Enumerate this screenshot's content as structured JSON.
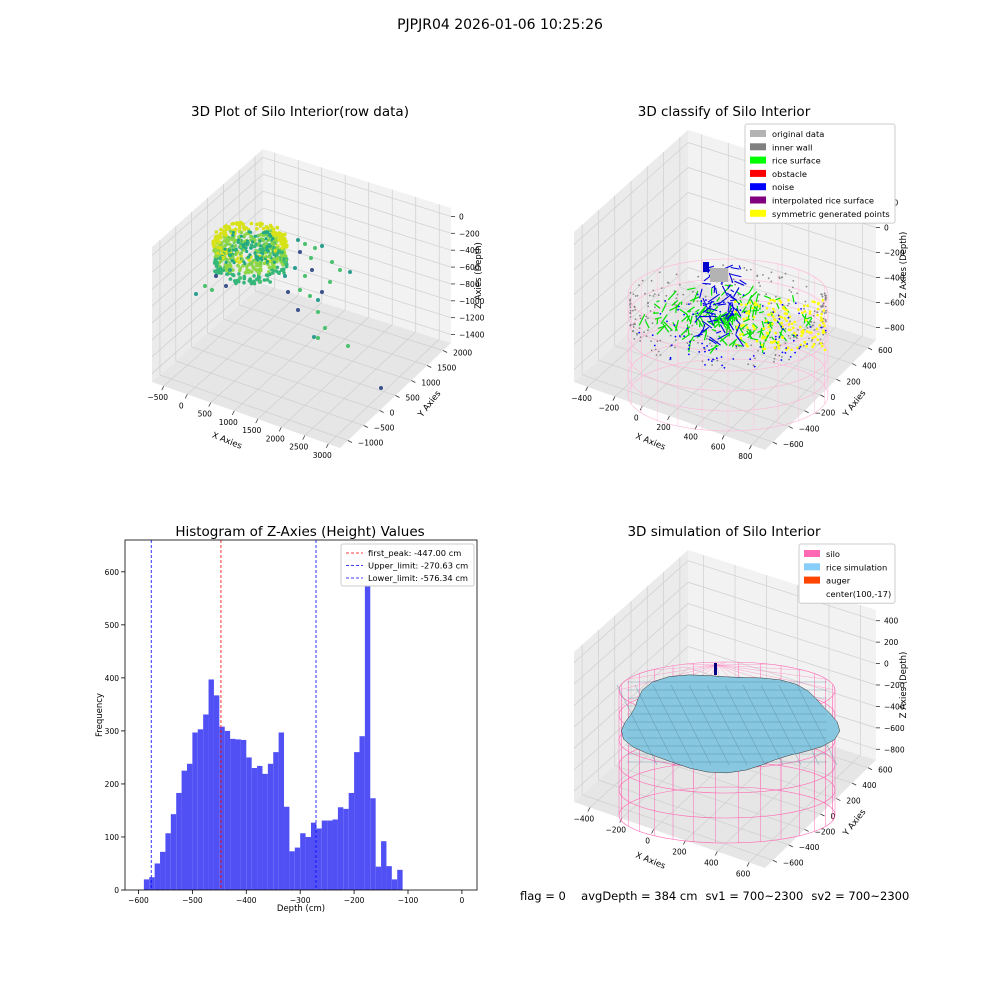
{
  "suptitle": "PJPJR04 2026-01-06 10:25:26",
  "status": {
    "flag": "flag = 0",
    "avg_depth": "avgDepth = 384 cm",
    "sv1": "sv1 = 700~2300",
    "sv2": "sv2 = 700~2300"
  },
  "chart_data": [
    {
      "type": "scatter",
      "projection": "3d",
      "title": "3D Plot of Silo Interior(row data)",
      "xlabel": "X Axies",
      "ylabel": "Y Axies",
      "zlabel": "Z Axies (Depth)",
      "xticks": [
        -500,
        0,
        500,
        1000,
        1500,
        2000,
        2500,
        3000
      ],
      "yticks": [
        -1000,
        -500,
        0,
        500,
        1000,
        1500,
        2000
      ],
      "zticks": [
        0,
        -200,
        -400,
        -600,
        -800,
        -1000,
        -1200,
        -1400
      ],
      "colormap": "viridis",
      "grid": true
    },
    {
      "type": "scatter",
      "projection": "3d",
      "title": "3D classify of Silo Interior",
      "xlabel": "X Axies",
      "ylabel": "Y Axies",
      "zlabel": "Z Axies (Depth)",
      "xticks": [
        -400,
        -200,
        0,
        200,
        400,
        600,
        800
      ],
      "yticks": [
        -600,
        -400,
        -200,
        0,
        200,
        400,
        600
      ],
      "zticks": [
        200,
        0,
        -200,
        -400,
        -600,
        -800
      ],
      "legend_position": "top-right",
      "legend": [
        {
          "label": "original data",
          "color": "#b3b3b3"
        },
        {
          "label": "inner wall",
          "color": "#808080"
        },
        {
          "label": "rice surface",
          "color": "#00ff00"
        },
        {
          "label": "obstacle",
          "color": "#ff0000"
        },
        {
          "label": "noise",
          "color": "#0000ff"
        },
        {
          "label": "interpolated rice surface",
          "color": "#800080"
        },
        {
          "label": "symmetric generated points",
          "color": "#ffff00"
        }
      ],
      "grid": true
    },
    {
      "type": "bar",
      "subtype": "histogram",
      "title": "Histogram of Z-Axies (Height) Values",
      "xlabel": "Depth (cm)",
      "ylabel": "Frequency",
      "xlim": [
        -625,
        28
      ],
      "ylim": [
        0,
        660
      ],
      "xticks": [
        -600,
        -500,
        -400,
        -300,
        -200,
        -100,
        0
      ],
      "yticks": [
        0,
        100,
        200,
        300,
        400,
        500,
        600
      ],
      "bar_color": "#5050f5",
      "bin_start": -590,
      "bin_width": 10,
      "values": [
        20,
        24,
        50,
        72,
        107,
        143,
        183,
        225,
        238,
        297,
        303,
        331,
        397,
        367,
        308,
        300,
        285,
        284,
        283,
        250,
        230,
        234,
        219,
        238,
        260,
        297,
        157,
        73,
        80,
        107,
        100,
        127,
        116,
        131,
        131,
        133,
        156,
        153,
        183,
        260,
        290,
        625,
        173,
        44,
        92,
        45,
        20,
        38
      ],
      "vlines": [
        {
          "label": "first_peak: -447.00 cm",
          "x": -447.0,
          "color": "#ff0000"
        },
        {
          "label": "Upper_limit: -270.63 cm",
          "x": -270.63,
          "color": "#0000ff"
        },
        {
          "label": "Lower_limit: -576.34 cm",
          "x": -576.34,
          "color": "#0000ff"
        }
      ],
      "legend_position": "top-right"
    },
    {
      "type": "surface",
      "projection": "3d",
      "title": "3D simulation of Silo Interior",
      "xlabel": "X Axies",
      "ylabel": "Y Axies",
      "zlabel": "Z Axies (Depth)",
      "xticks": [
        -400,
        -200,
        0,
        200,
        400,
        600
      ],
      "yticks": [
        -600,
        -400,
        -200,
        0,
        200,
        400,
        600
      ],
      "zticks": [
        400,
        200,
        0,
        -200,
        -400,
        -600,
        -800
      ],
      "legend_position": "top-right",
      "legend": [
        {
          "label": "silo",
          "color": "#ff69b4"
        },
        {
          "label": "rice simulation",
          "color": "#87cefa"
        },
        {
          "label": "auger",
          "color": "#ff4500"
        },
        {
          "label": "center(100,-17)",
          "color": "none"
        }
      ],
      "grid": true
    }
  ]
}
